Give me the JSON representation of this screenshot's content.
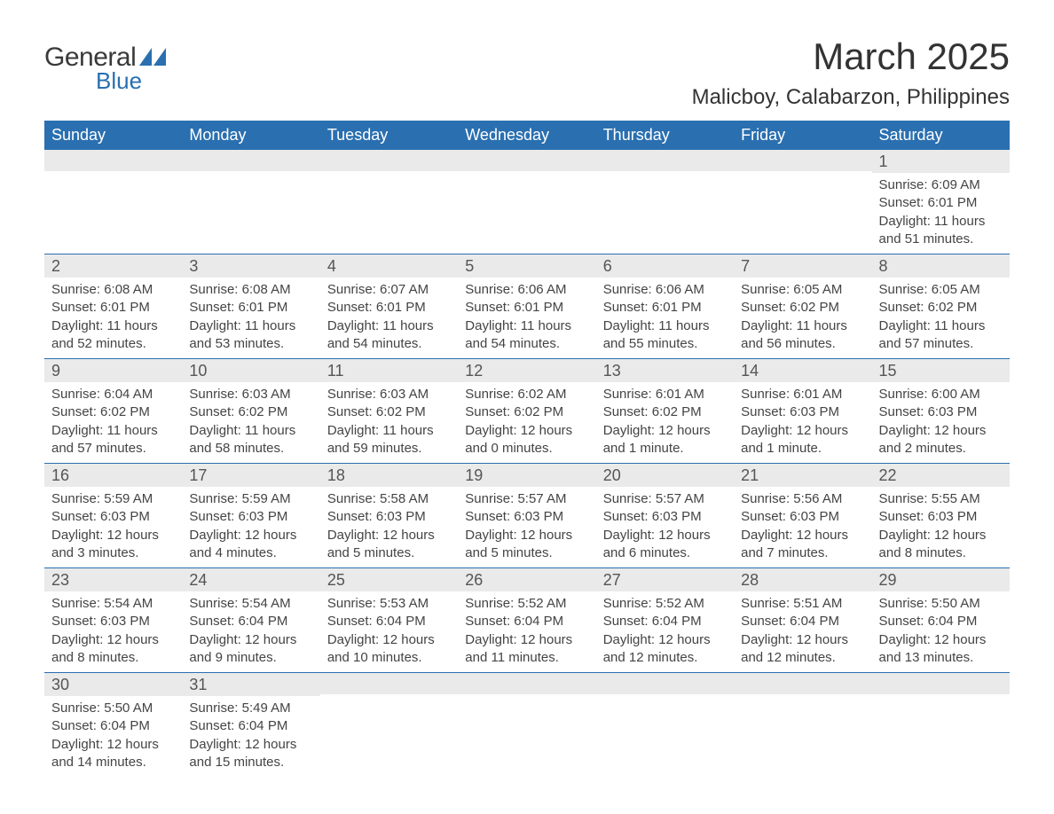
{
  "logo": {
    "text_general": "General",
    "text_blue": "Blue",
    "shape_color": "#2a6fb0"
  },
  "title": "March 2025",
  "subtitle": "Malicboy, Calabarzon, Philippines",
  "colors": {
    "header_bg": "#2a6fb0",
    "header_text": "#ffffff",
    "daynum_bg": "#eaeaea",
    "daynum_text": "#555555",
    "body_text": "#444444",
    "row_border": "#2a6fb0",
    "page_bg": "#ffffff",
    "logo_general": "#3a3a3a",
    "logo_blue": "#2a6fb0"
  },
  "typography": {
    "title_fontsize": 42,
    "subtitle_fontsize": 24,
    "header_fontsize": 18,
    "daynum_fontsize": 18,
    "content_fontsize": 15,
    "logo_general_fontsize": 30,
    "logo_blue_fontsize": 26
  },
  "weekdays": [
    "Sunday",
    "Monday",
    "Tuesday",
    "Wednesday",
    "Thursday",
    "Friday",
    "Saturday"
  ],
  "weeks": [
    [
      null,
      null,
      null,
      null,
      null,
      null,
      {
        "day": "1",
        "sunrise": "Sunrise: 6:09 AM",
        "sunset": "Sunset: 6:01 PM",
        "daylight1": "Daylight: 11 hours",
        "daylight2": "and 51 minutes."
      }
    ],
    [
      {
        "day": "2",
        "sunrise": "Sunrise: 6:08 AM",
        "sunset": "Sunset: 6:01 PM",
        "daylight1": "Daylight: 11 hours",
        "daylight2": "and 52 minutes."
      },
      {
        "day": "3",
        "sunrise": "Sunrise: 6:08 AM",
        "sunset": "Sunset: 6:01 PM",
        "daylight1": "Daylight: 11 hours",
        "daylight2": "and 53 minutes."
      },
      {
        "day": "4",
        "sunrise": "Sunrise: 6:07 AM",
        "sunset": "Sunset: 6:01 PM",
        "daylight1": "Daylight: 11 hours",
        "daylight2": "and 54 minutes."
      },
      {
        "day": "5",
        "sunrise": "Sunrise: 6:06 AM",
        "sunset": "Sunset: 6:01 PM",
        "daylight1": "Daylight: 11 hours",
        "daylight2": "and 54 minutes."
      },
      {
        "day": "6",
        "sunrise": "Sunrise: 6:06 AM",
        "sunset": "Sunset: 6:01 PM",
        "daylight1": "Daylight: 11 hours",
        "daylight2": "and 55 minutes."
      },
      {
        "day": "7",
        "sunrise": "Sunrise: 6:05 AM",
        "sunset": "Sunset: 6:02 PM",
        "daylight1": "Daylight: 11 hours",
        "daylight2": "and 56 minutes."
      },
      {
        "day": "8",
        "sunrise": "Sunrise: 6:05 AM",
        "sunset": "Sunset: 6:02 PM",
        "daylight1": "Daylight: 11 hours",
        "daylight2": "and 57 minutes."
      }
    ],
    [
      {
        "day": "9",
        "sunrise": "Sunrise: 6:04 AM",
        "sunset": "Sunset: 6:02 PM",
        "daylight1": "Daylight: 11 hours",
        "daylight2": "and 57 minutes."
      },
      {
        "day": "10",
        "sunrise": "Sunrise: 6:03 AM",
        "sunset": "Sunset: 6:02 PM",
        "daylight1": "Daylight: 11 hours",
        "daylight2": "and 58 minutes."
      },
      {
        "day": "11",
        "sunrise": "Sunrise: 6:03 AM",
        "sunset": "Sunset: 6:02 PM",
        "daylight1": "Daylight: 11 hours",
        "daylight2": "and 59 minutes."
      },
      {
        "day": "12",
        "sunrise": "Sunrise: 6:02 AM",
        "sunset": "Sunset: 6:02 PM",
        "daylight1": "Daylight: 12 hours",
        "daylight2": "and 0 minutes."
      },
      {
        "day": "13",
        "sunrise": "Sunrise: 6:01 AM",
        "sunset": "Sunset: 6:02 PM",
        "daylight1": "Daylight: 12 hours",
        "daylight2": "and 1 minute."
      },
      {
        "day": "14",
        "sunrise": "Sunrise: 6:01 AM",
        "sunset": "Sunset: 6:03 PM",
        "daylight1": "Daylight: 12 hours",
        "daylight2": "and 1 minute."
      },
      {
        "day": "15",
        "sunrise": "Sunrise: 6:00 AM",
        "sunset": "Sunset: 6:03 PM",
        "daylight1": "Daylight: 12 hours",
        "daylight2": "and 2 minutes."
      }
    ],
    [
      {
        "day": "16",
        "sunrise": "Sunrise: 5:59 AM",
        "sunset": "Sunset: 6:03 PM",
        "daylight1": "Daylight: 12 hours",
        "daylight2": "and 3 minutes."
      },
      {
        "day": "17",
        "sunrise": "Sunrise: 5:59 AM",
        "sunset": "Sunset: 6:03 PM",
        "daylight1": "Daylight: 12 hours",
        "daylight2": "and 4 minutes."
      },
      {
        "day": "18",
        "sunrise": "Sunrise: 5:58 AM",
        "sunset": "Sunset: 6:03 PM",
        "daylight1": "Daylight: 12 hours",
        "daylight2": "and 5 minutes."
      },
      {
        "day": "19",
        "sunrise": "Sunrise: 5:57 AM",
        "sunset": "Sunset: 6:03 PM",
        "daylight1": "Daylight: 12 hours",
        "daylight2": "and 5 minutes."
      },
      {
        "day": "20",
        "sunrise": "Sunrise: 5:57 AM",
        "sunset": "Sunset: 6:03 PM",
        "daylight1": "Daylight: 12 hours",
        "daylight2": "and 6 minutes."
      },
      {
        "day": "21",
        "sunrise": "Sunrise: 5:56 AM",
        "sunset": "Sunset: 6:03 PM",
        "daylight1": "Daylight: 12 hours",
        "daylight2": "and 7 minutes."
      },
      {
        "day": "22",
        "sunrise": "Sunrise: 5:55 AM",
        "sunset": "Sunset: 6:03 PM",
        "daylight1": "Daylight: 12 hours",
        "daylight2": "and 8 minutes."
      }
    ],
    [
      {
        "day": "23",
        "sunrise": "Sunrise: 5:54 AM",
        "sunset": "Sunset: 6:03 PM",
        "daylight1": "Daylight: 12 hours",
        "daylight2": "and 8 minutes."
      },
      {
        "day": "24",
        "sunrise": "Sunrise: 5:54 AM",
        "sunset": "Sunset: 6:04 PM",
        "daylight1": "Daylight: 12 hours",
        "daylight2": "and 9 minutes."
      },
      {
        "day": "25",
        "sunrise": "Sunrise: 5:53 AM",
        "sunset": "Sunset: 6:04 PM",
        "daylight1": "Daylight: 12 hours",
        "daylight2": "and 10 minutes."
      },
      {
        "day": "26",
        "sunrise": "Sunrise: 5:52 AM",
        "sunset": "Sunset: 6:04 PM",
        "daylight1": "Daylight: 12 hours",
        "daylight2": "and 11 minutes."
      },
      {
        "day": "27",
        "sunrise": "Sunrise: 5:52 AM",
        "sunset": "Sunset: 6:04 PM",
        "daylight1": "Daylight: 12 hours",
        "daylight2": "and 12 minutes."
      },
      {
        "day": "28",
        "sunrise": "Sunrise: 5:51 AM",
        "sunset": "Sunset: 6:04 PM",
        "daylight1": "Daylight: 12 hours",
        "daylight2": "and 12 minutes."
      },
      {
        "day": "29",
        "sunrise": "Sunrise: 5:50 AM",
        "sunset": "Sunset: 6:04 PM",
        "daylight1": "Daylight: 12 hours",
        "daylight2": "and 13 minutes."
      }
    ],
    [
      {
        "day": "30",
        "sunrise": "Sunrise: 5:50 AM",
        "sunset": "Sunset: 6:04 PM",
        "daylight1": "Daylight: 12 hours",
        "daylight2": "and 14 minutes."
      },
      {
        "day": "31",
        "sunrise": "Sunrise: 5:49 AM",
        "sunset": "Sunset: 6:04 PM",
        "daylight1": "Daylight: 12 hours",
        "daylight2": "and 15 minutes."
      },
      null,
      null,
      null,
      null,
      null
    ]
  ]
}
